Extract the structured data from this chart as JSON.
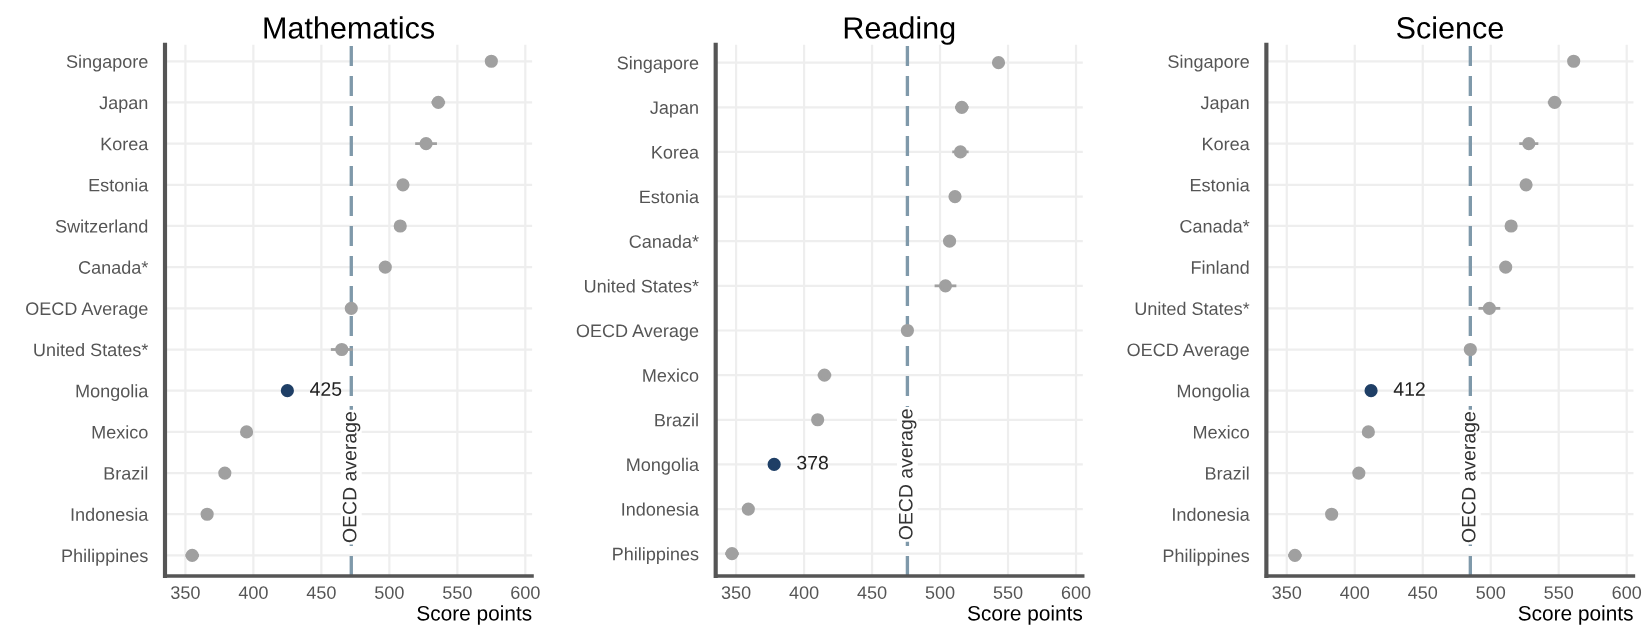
{
  "chart_data": [
    {
      "type": "scatter",
      "orientation": "horizontal",
      "title": "Mathematics",
      "xlabel": "Score points",
      "categories": [
        "Singapore",
        "Japan",
        "Korea",
        "Estonia",
        "Switzerland",
        "Canada*",
        "OECD Average",
        "United States*",
        "Mongolia",
        "Mexico",
        "Brazil",
        "Indonesia",
        "Philippines"
      ],
      "values": [
        575,
        536,
        527,
        510,
        508,
        497,
        472,
        465,
        425,
        395,
        379,
        366,
        355
      ],
      "errors": [
        3,
        5,
        8,
        4,
        4,
        3,
        1,
        8,
        4,
        4,
        3,
        4,
        5
      ],
      "colors": [
        "#a0a0a0",
        "#a0a0a0",
        "#a0a0a0",
        "#a0a0a0",
        "#a0a0a0",
        "#a0a0a0",
        "#a0a0a0",
        "#a0a0a0",
        "#1f3f66",
        "#a0a0a0",
        "#a0a0a0",
        "#a0a0a0",
        "#a0a0a0"
      ],
      "value_labels": [
        null,
        null,
        null,
        null,
        null,
        null,
        null,
        null,
        "425",
        null,
        null,
        null,
        null
      ],
      "ref_lines": [
        {
          "axis": "x",
          "value": 472,
          "label": "OECD average",
          "color": "#7f99aa",
          "line_style": "dashed"
        }
      ],
      "xlim": [
        335,
        605
      ],
      "xticks": [
        350,
        400,
        450,
        500,
        550,
        600
      ],
      "grid": true,
      "marker": "circle"
    },
    {
      "type": "scatter",
      "orientation": "horizontal",
      "title": "Reading",
      "xlabel": "Score points",
      "categories": [
        "Singapore",
        "Japan",
        "Korea",
        "Estonia",
        "Canada*",
        "United States*",
        "OECD Average",
        "Mexico",
        "Brazil",
        "Mongolia",
        "Indonesia",
        "Philippines"
      ],
      "values": [
        543,
        516,
        515,
        511,
        507,
        504,
        476,
        415,
        410,
        378,
        359,
        347
      ],
      "errors": [
        3,
        5,
        6,
        4,
        3,
        8,
        1,
        5,
        3,
        4,
        4,
        5
      ],
      "colors": [
        "#a0a0a0",
        "#a0a0a0",
        "#a0a0a0",
        "#a0a0a0",
        "#a0a0a0",
        "#a0a0a0",
        "#a0a0a0",
        "#a0a0a0",
        "#a0a0a0",
        "#1f3f66",
        "#a0a0a0",
        "#a0a0a0"
      ],
      "value_labels": [
        null,
        null,
        null,
        null,
        null,
        null,
        null,
        null,
        null,
        "378",
        null,
        null
      ],
      "ref_lines": [
        {
          "axis": "x",
          "value": 476,
          "label": "OECD average",
          "color": "#7f99aa",
          "line_style": "dashed"
        }
      ],
      "xlim": [
        335,
        605
      ],
      "xticks": [
        350,
        400,
        450,
        500,
        550,
        600
      ],
      "grid": true,
      "marker": "circle"
    },
    {
      "type": "scatter",
      "orientation": "horizontal",
      "title": "Science",
      "xlabel": "Score points",
      "categories": [
        "Singapore",
        "Japan",
        "Korea",
        "Estonia",
        "Canada*",
        "Finland",
        "United States*",
        "OECD Average",
        "Mongolia",
        "Mexico",
        "Brazil",
        "Indonesia",
        "Philippines"
      ],
      "values": [
        561,
        547,
        528,
        526,
        515,
        511,
        499,
        485,
        412,
        410,
        403,
        383,
        356
      ],
      "errors": [
        3,
        5,
        7,
        4,
        3,
        4,
        8,
        1,
        4,
        4,
        3,
        4,
        5
      ],
      "colors": [
        "#a0a0a0",
        "#a0a0a0",
        "#a0a0a0",
        "#a0a0a0",
        "#a0a0a0",
        "#a0a0a0",
        "#a0a0a0",
        "#a0a0a0",
        "#1f3f66",
        "#a0a0a0",
        "#a0a0a0",
        "#a0a0a0",
        "#a0a0a0"
      ],
      "value_labels": [
        null,
        null,
        null,
        null,
        null,
        null,
        null,
        null,
        "412",
        null,
        null,
        null,
        null
      ],
      "ref_lines": [
        {
          "axis": "x",
          "value": 485,
          "label": "OECD average",
          "color": "#7f99aa",
          "line_style": "dashed"
        }
      ],
      "xlim": [
        335,
        605
      ],
      "xticks": [
        350,
        400,
        450,
        500,
        550,
        600
      ],
      "grid": true,
      "marker": "circle"
    }
  ]
}
